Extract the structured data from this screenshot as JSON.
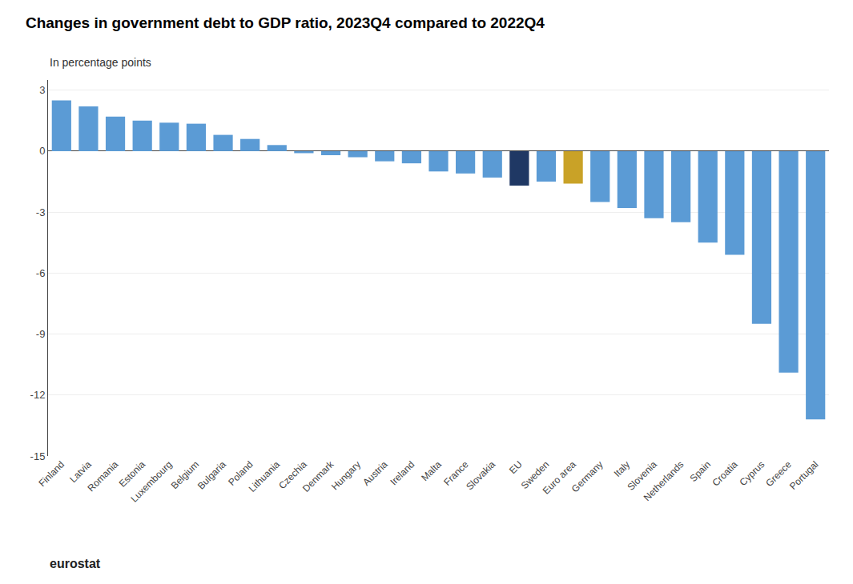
{
  "chart_data": {
    "type": "bar",
    "title": "Changes in government debt to GDP ratio, 2023Q4 compared to 2022Q4",
    "subtitle": "In percentage points",
    "categories": [
      "Finland",
      "Latvia",
      "Romania",
      "Estonia",
      "Luxembourg",
      "Belgium",
      "Bulgaria",
      "Poland",
      "Lithuania",
      "Czechia",
      "Denmark",
      "Hungary",
      "Austria",
      "Ireland",
      "Malta",
      "France",
      "Slovakia",
      "EU",
      "Sweden",
      "Euro area",
      "Germany",
      "Italy",
      "Slovenia",
      "Netherlands",
      "Spain",
      "Croatia",
      "Cyprus",
      "Greece",
      "Portugal"
    ],
    "values": [
      2.5,
      2.2,
      1.7,
      1.5,
      1.4,
      1.35,
      0.8,
      0.6,
      0.3,
      -0.1,
      -0.2,
      -0.3,
      -0.5,
      -0.6,
      -1.0,
      -1.1,
      -1.3,
      -1.7,
      -1.5,
      -1.6,
      -2.5,
      -2.8,
      -3.3,
      -3.5,
      -4.5,
      -5.1,
      -8.5,
      -10.9,
      -13.2
    ],
    "colors": [
      "#5b9bd5",
      "#5b9bd5",
      "#5b9bd5",
      "#5b9bd5",
      "#5b9bd5",
      "#5b9bd5",
      "#5b9bd5",
      "#5b9bd5",
      "#5b9bd5",
      "#5b9bd5",
      "#5b9bd5",
      "#5b9bd5",
      "#5b9bd5",
      "#5b9bd5",
      "#5b9bd5",
      "#5b9bd5",
      "#5b9bd5",
      "#1f3864",
      "#5b9bd5",
      "#c9a227",
      "#5b9bd5",
      "#5b9bd5",
      "#5b9bd5",
      "#5b9bd5",
      "#5b9bd5",
      "#5b9bd5",
      "#5b9bd5",
      "#5b9bd5",
      "#5b9bd5"
    ],
    "ylim": [
      -15,
      3.5
    ],
    "yticks": [
      3,
      0,
      -3,
      -6,
      -9,
      -12,
      -15
    ],
    "grid": true,
    "annotations": [
      "eurostat"
    ]
  }
}
